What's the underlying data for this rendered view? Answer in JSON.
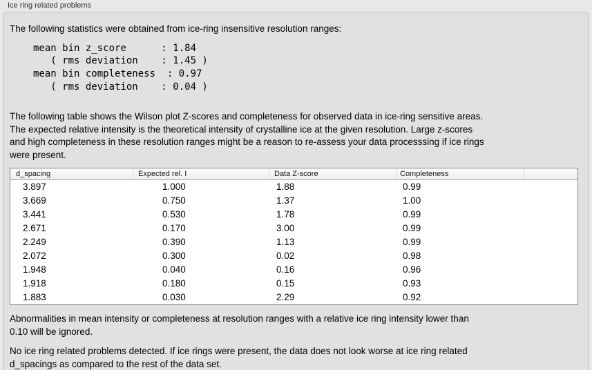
{
  "page": {
    "section_title": "Ice ring related problems"
  },
  "panel": {
    "intro": "The following statistics were obtained from ice-ring insensitive resolution ranges:",
    "stats_text": "mean bin z_score      : 1.84\n   ( rms deviation    : 1.45 )\nmean bin completeness  : 0.97\n   ( rms deviation    : 0.04 )",
    "stats": {
      "mean_bin_z_score": "1.84",
      "z_score_rms_deviation": "1.45",
      "mean_bin_completeness": "0.97",
      "completeness_rms_deviation": "0.04"
    },
    "description": "The following table shows the Wilson plot Z-scores and completeness for observed data in ice-ring sensitive areas.\nThe expected relative intensity is the theoretical intensity of crystalline ice at the given resolution. Large z-scores\nand high completeness in these resolution ranges might be a reason to re-assess your data processsing if ice rings\nwere present.",
    "ignore_note": "Abnormalities in mean intensity or completeness at resolution ranges with a relative ice ring intensity lower than\n0.10 will be ignored.",
    "conclusion": "No ice ring related problems detected. If ice rings were present, the data does not look worse at ice ring related\nd_spacings as compared to the rest of the data set."
  },
  "table": {
    "columns": [
      "d_spacing",
      "Expected rel. I",
      "Data Z-score",
      "Completeness"
    ],
    "rows": [
      [
        "3.897",
        "1.000",
        "1.88",
        "0.99"
      ],
      [
        "3.669",
        "0.750",
        "1.37",
        "1.00"
      ],
      [
        "3.441",
        "0.530",
        "1.78",
        "0.99"
      ],
      [
        "2.671",
        "0.170",
        "3.00",
        "0.99"
      ],
      [
        "2.249",
        "0.390",
        "1.13",
        "0.99"
      ],
      [
        "2.072",
        "0.300",
        "0.02",
        "0.98"
      ],
      [
        "1.948",
        "0.040",
        "0.16",
        "0.96"
      ],
      [
        "1.918",
        "0.180",
        "0.15",
        "0.93"
      ],
      [
        "1.883",
        "0.030",
        "2.29",
        "0.92"
      ]
    ]
  },
  "colors": {
    "page_bg": "#e8e8e8",
    "panel_bg": "#e1e1e1",
    "table_bg": "#ffffff",
    "table_border": "#7f7f7f"
  }
}
